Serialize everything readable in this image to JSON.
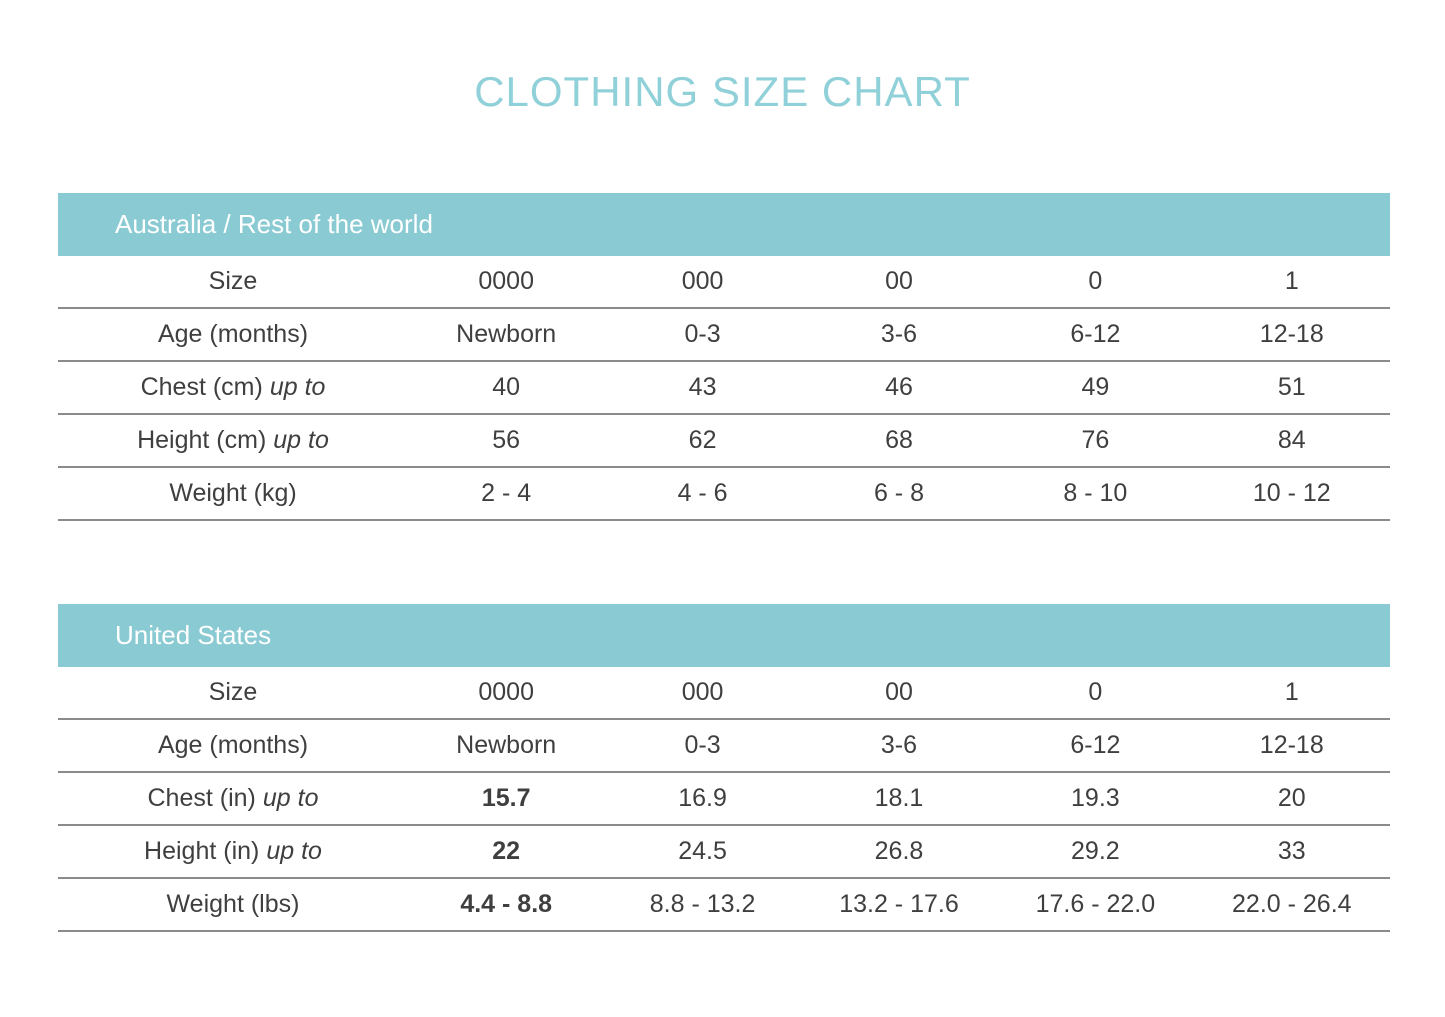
{
  "title": "CLOTHING SIZE CHART",
  "colors": {
    "accent_teal": "#89cad3",
    "title_teal": "#90d0d9",
    "header_text": "#ffffff",
    "text_dark": "#3f3f3f",
    "row_border": "#8b8b8b"
  },
  "tables": [
    {
      "header": "Australia / Rest of the world",
      "rows": [
        {
          "label": "Size",
          "label_suffix": "",
          "values": [
            "0000",
            "000",
            "00",
            "0",
            "1"
          ]
        },
        {
          "label": "Age (months)",
          "label_suffix": "",
          "values": [
            "Newborn",
            "0-3",
            "3-6",
            "6-12",
            "12-18"
          ]
        },
        {
          "label": "Chest (cm)",
          "label_suffix": "up to",
          "values": [
            "40",
            "43",
            "46",
            "49",
            "51"
          ]
        },
        {
          "label": "Height (cm)",
          "label_suffix": "up to",
          "values": [
            "56",
            "62",
            "68",
            "76",
            "84"
          ]
        },
        {
          "label": "Weight (kg)",
          "label_suffix": "",
          "values": [
            "2 - 4",
            "4 - 6",
            "6 - 8",
            "8 - 10",
            "10 - 12"
          ]
        }
      ]
    },
    {
      "header": "United States",
      "rows": [
        {
          "label": "Size",
          "label_suffix": "",
          "values": [
            "0000",
            "000",
            "00",
            "0",
            "1"
          ]
        },
        {
          "label": "Age (months)",
          "label_suffix": "",
          "values": [
            "Newborn",
            "0-3",
            "3-6",
            "6-12",
            "12-18"
          ]
        },
        {
          "label": "Chest (in)",
          "label_suffix": "up to",
          "values": [
            "15.7",
            "16.9",
            "18.1",
            "19.3",
            "20"
          ]
        },
        {
          "label": "Height (in)",
          "label_suffix": "up to",
          "values": [
            "22",
            "24.5",
            "26.8",
            "29.2",
            "33"
          ]
        },
        {
          "label": "Weight (lbs)",
          "label_suffix": "",
          "values": [
            "4.4 - 8.8",
            "8.8 - 13.2",
            "13.2 - 17.6",
            "17.6 - 22.0",
            "22.0 - 26.4"
          ]
        }
      ]
    }
  ],
  "chart_data": [
    {
      "type": "table",
      "title": "Australia / Rest of the world",
      "row_headers": [
        "Size",
        "Age (months)",
        "Chest (cm) up to",
        "Height (cm) up to",
        "Weight (kg)"
      ],
      "rows": [
        [
          "0000",
          "000",
          "00",
          "0",
          "1"
        ],
        [
          "Newborn",
          "0-3",
          "3-6",
          "6-12",
          "12-18"
        ],
        [
          40,
          43,
          46,
          49,
          51
        ],
        [
          56,
          62,
          68,
          76,
          84
        ],
        [
          "2 - 4",
          "4 - 6",
          "6 - 8",
          "8 - 10",
          "10 - 12"
        ]
      ]
    },
    {
      "type": "table",
      "title": "United States",
      "row_headers": [
        "Size",
        "Age (months)",
        "Chest (in) up to",
        "Height (in) up to",
        "Weight (lbs)"
      ],
      "rows": [
        [
          "0000",
          "000",
          "00",
          "0",
          "1"
        ],
        [
          "Newborn",
          "0-3",
          "3-6",
          "6-12",
          "12-18"
        ],
        [
          15.7,
          16.9,
          18.1,
          19.3,
          20
        ],
        [
          22,
          24.5,
          26.8,
          29.2,
          33
        ],
        [
          "4.4 - 8.8",
          "8.8 - 13.2",
          "13.2 - 17.6",
          "17.6 - 22.0",
          "22.0 - 26.4"
        ]
      ]
    }
  ]
}
